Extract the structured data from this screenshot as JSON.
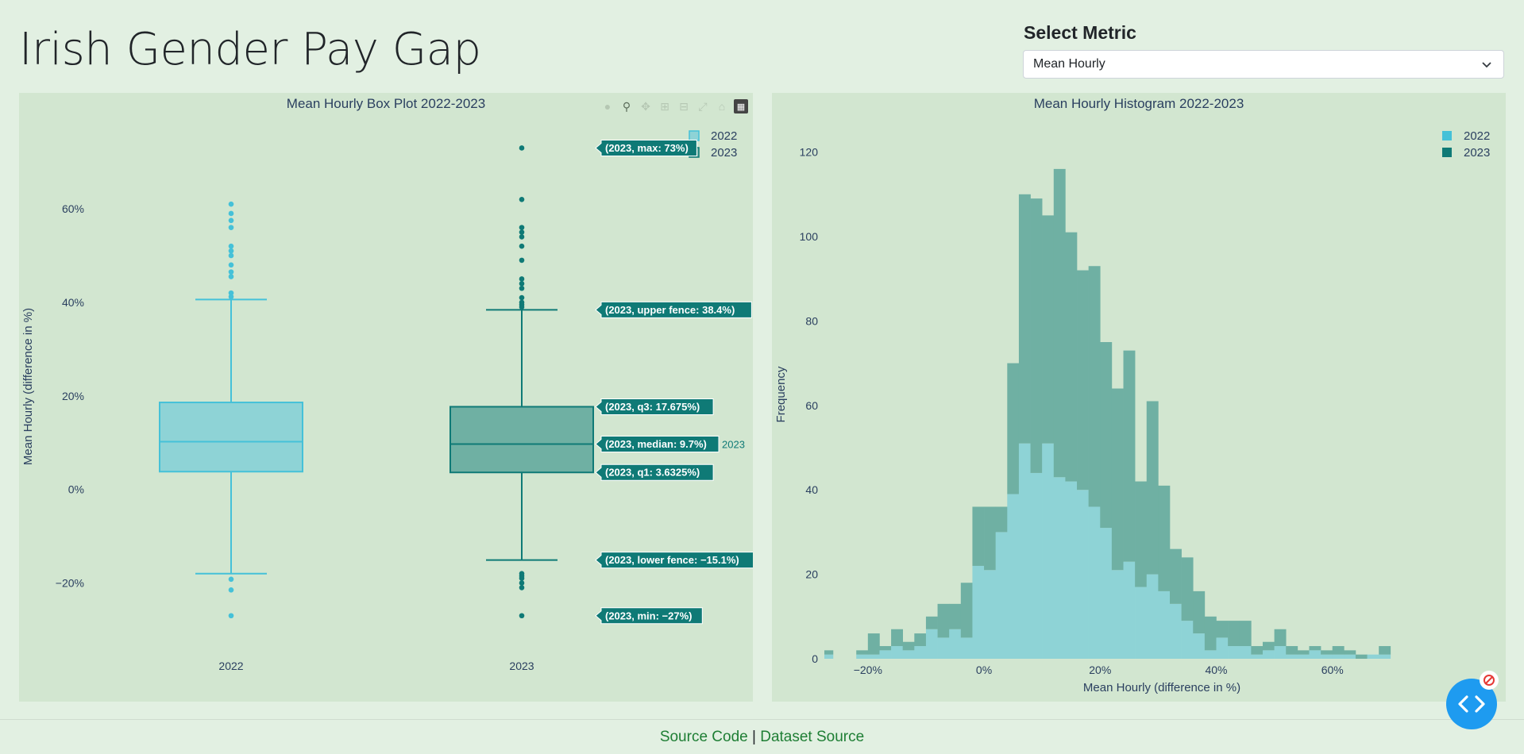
{
  "app": {
    "title": "Irish Gender Pay Gap"
  },
  "metric": {
    "label": "Select Metric",
    "selected": "Mean Hourly"
  },
  "footer": {
    "source_code": "Source Code",
    "separator": "|",
    "dataset_source": "Dataset Source"
  },
  "colors": {
    "c2022": "#45c1d8",
    "c2022_fill": "#8ed3d6",
    "c2023": "#0f7a76",
    "c2023_fill": "#6fb0a3"
  },
  "icons": [
    "camera-icon",
    "zoom-icon",
    "pan-icon",
    "zoom-in-icon",
    "zoom-out-icon",
    "autoscale-icon",
    "reset-axes-icon",
    "plotly-logo-icon"
  ],
  "chart_data": [
    {
      "type": "box",
      "title": "Mean Hourly Box Plot 2022-2023",
      "ylabel": "Mean Hourly (difference in %)",
      "ylim": [
        -34,
        78
      ],
      "yticks": [
        -20,
        0,
        20,
        40,
        60
      ],
      "ytick_labels": [
        "−20%",
        "0%",
        "20%",
        "40%",
        "60%"
      ],
      "legend": [
        "2022",
        "2023"
      ],
      "legend_position": "top-right",
      "categories": [
        "2022",
        "2023"
      ],
      "boxes": [
        {
          "name": "2022",
          "min": -27,
          "lower_fence": -18,
          "q1": 3.8,
          "median": 10.2,
          "q3": 18.6,
          "upper_fence": 40.6,
          "outliers": [
            -27,
            -21.5,
            -19.2,
            41.2,
            42,
            45.5,
            46.5,
            48,
            50,
            51,
            52,
            56,
            57.5,
            59,
            61
          ]
        },
        {
          "name": "2023",
          "min": -27,
          "lower_fence": -15.1,
          "q1": 3.6325,
          "median": 9.7,
          "q3": 17.675,
          "upper_fence": 38.4,
          "max": 73,
          "outliers": [
            -27,
            -21,
            -20,
            -19,
            -18.5,
            -18,
            39,
            39.5,
            40,
            41,
            43,
            44,
            45,
            49,
            52,
            54,
            55,
            56,
            62,
            73
          ]
        }
      ],
      "hover_name": "2023",
      "hover_labels": [
        {
          "key": "max",
          "text": "(2023, max: 73%)",
          "y": 73
        },
        {
          "key": "upper_fence",
          "text": "(2023, upper fence: 38.4%)",
          "y": 38.4
        },
        {
          "key": "q3",
          "text": "(2023, q3: 17.675%)",
          "y": 17.675
        },
        {
          "key": "median",
          "text": "(2023, median: 9.7%)",
          "y": 9.7
        },
        {
          "key": "q1",
          "text": "(2023, q1: 3.6325%)",
          "y": 3.6325
        },
        {
          "key": "lower_fence",
          "text": "(2023, lower fence: −15.1%)",
          "y": -15.1
        },
        {
          "key": "min",
          "text": "(2023, min: −27%)",
          "y": -27
        }
      ]
    },
    {
      "type": "histogram",
      "title": "Mean Hourly Histogram 2022-2023",
      "xlabel": "Mean Hourly (difference in %)",
      "ylabel": "Frequency",
      "xlim": [
        -27.5,
        77
      ],
      "ylim": [
        0,
        125
      ],
      "xticks": [
        -20,
        0,
        20,
        40,
        60
      ],
      "xtick_labels": [
        "−20%",
        "0%",
        "20%",
        "40%",
        "60%"
      ],
      "yticks": [
        0,
        20,
        40,
        60,
        80,
        100,
        120
      ],
      "legend": [
        "2022",
        "2023"
      ],
      "legend_position": "top-right",
      "stacked": true,
      "bin_start": -28,
      "bin_width": 2,
      "series": [
        {
          "name": "2022",
          "values": [
            1,
            0,
            0,
            1,
            1,
            2,
            3,
            2,
            3,
            7,
            5,
            7,
            5,
            22,
            21,
            30,
            39,
            51,
            44,
            51,
            43,
            42,
            40,
            36,
            31,
            21,
            23,
            17,
            20,
            16,
            13,
            9,
            6,
            2,
            5,
            3,
            3,
            1,
            2,
            3,
            1,
            1,
            2,
            1,
            1,
            1,
            0,
            1,
            1,
            0,
            0,
            0,
            0,
            0,
            0,
            0,
            0,
            0,
            0,
            0,
            0,
            0
          ]
        },
        {
          "name": "2023",
          "values": [
            1,
            0,
            0,
            1,
            5,
            1,
            4,
            2,
            3,
            3,
            8,
            6,
            13,
            14,
            15,
            6,
            31,
            59,
            65,
            54,
            73,
            59,
            52,
            57,
            44,
            43,
            50,
            25,
            41,
            25,
            13,
            15,
            10,
            8,
            4,
            6,
            6,
            2,
            2,
            4,
            2,
            1,
            1,
            1,
            2,
            1,
            1,
            0,
            2,
            0,
            0,
            0,
            0,
            0,
            0,
            0,
            0,
            0,
            0,
            1,
            0,
            0
          ]
        }
      ]
    }
  ]
}
